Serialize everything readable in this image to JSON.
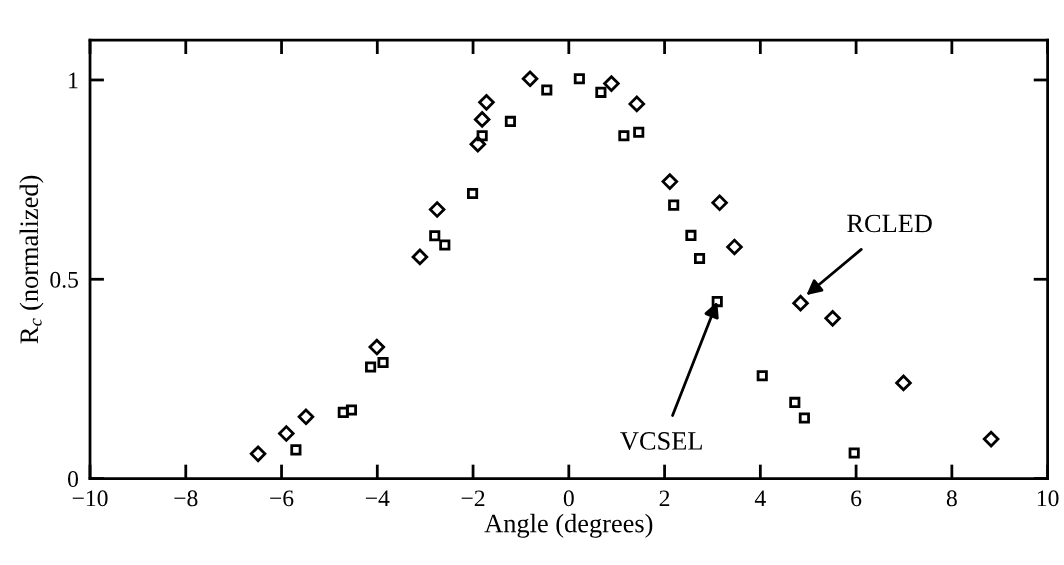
{
  "chart_data": {
    "type": "scatter",
    "xlabel": "Angle (degrees)",
    "ylabel": "R$_{c}$ (normalized)",
    "xlim": [
      -10,
      10
    ],
    "xticks": [
      {
        "value": -10,
        "label": "−10"
      },
      {
        "value": -8,
        "label": "−8"
      },
      {
        "value": -6,
        "label": "−6"
      },
      {
        "value": -4,
        "label": "−4"
      },
      {
        "value": -2,
        "label": "−2"
      },
      0,
      2,
      4,
      6,
      8,
      10
    ],
    "ylim": [
      0,
      1.1
    ],
    "yticks": [
      0,
      0.5,
      1
    ],
    "grid": false,
    "legend": false,
    "series": [
      {
        "color": "#000000",
        "marker": "diamond",
        "x": [
          -6.49,
          -5.9,
          -5.49,
          -4.01,
          -3.11,
          -2.75,
          -1.9,
          -1.81,
          -1.72,
          -0.81,
          0.89,
          1.42,
          2.11,
          3.15,
          3.46,
          4.84,
          5.51,
          6.99,
          8.82
        ],
        "values": [
          0.062,
          0.113,
          0.155,
          0.33,
          0.556,
          0.675,
          0.839,
          0.901,
          0.944,
          1.003,
          0.991,
          0.94,
          0.745,
          0.692,
          0.581,
          0.44,
          0.402,
          0.24,
          0.099
        ]
      },
      {
        "color": "#000000",
        "marker": "square",
        "x": [
          -5.7,
          -4.71,
          -4.54,
          -4.14,
          -3.88,
          -2.8,
          -2.59,
          -2.01,
          -1.81,
          -1.22,
          -0.46,
          0.22,
          0.67,
          1.15,
          1.46,
          2.19,
          2.55,
          2.73,
          3.1,
          4.04,
          4.72,
          4.92,
          5.96
        ],
        "values": [
          0.072,
          0.166,
          0.172,
          0.28,
          0.291,
          0.609,
          0.586,
          0.715,
          0.86,
          0.896,
          0.975,
          1.003,
          0.969,
          0.86,
          0.869,
          0.686,
          0.61,
          0.552,
          0.444,
          0.258,
          0.191,
          0.152,
          0.064
        ]
      }
    ],
    "annotations": [
      {
        "text": "RCLED",
        "x": 4.96,
        "y": 0.46
      },
      {
        "text": "VCSEL",
        "x": 3.1,
        "y": 0.444
      }
    ]
  }
}
